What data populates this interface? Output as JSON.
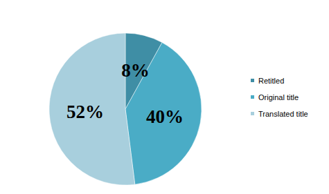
{
  "chart_data": {
    "type": "pie",
    "categories": [
      "Retitled",
      "Original title",
      "Translated title"
    ],
    "values": [
      8,
      40,
      52
    ],
    "value_labels": [
      "8%",
      "40%",
      "52%"
    ],
    "colors": [
      "#3f8ea5",
      "#4aacc6",
      "#a8cfdd"
    ],
    "data_labels": true,
    "legend": "right"
  }
}
